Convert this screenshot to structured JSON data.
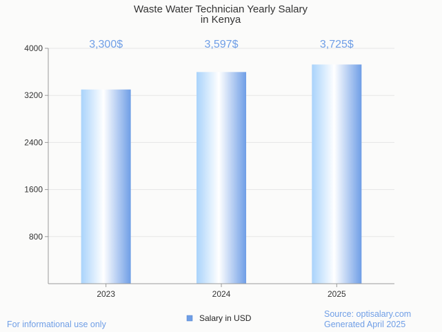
{
  "chart_data": {
    "type": "bar",
    "title": [
      "Waste Water Technician Yearly Salary",
      "in Kenya"
    ],
    "categories": [
      "2023",
      "2024",
      "2025"
    ],
    "series": [
      {
        "name": "Salary in USD",
        "values": [
          3300,
          3597,
          3725
        ]
      }
    ],
    "data_labels": [
      "3,300$",
      "3,597$",
      "3,725$"
    ],
    "yticks": [
      800,
      1600,
      2400,
      3200,
      4000
    ],
    "ylim": [
      0,
      4000
    ],
    "grid": true,
    "legend_position": "bottom-center"
  },
  "colors": {
    "bar_edge": "#6f9ee6",
    "bar_light": "#a9d3fb",
    "bar_center": "#ffffff",
    "label": "#6f9ee6",
    "grid": "#e6e6e6",
    "axis": "#999999"
  },
  "footer": {
    "left": "For informational use only",
    "source": "Source: optisalary.com",
    "generated": "Generated April 2025"
  }
}
